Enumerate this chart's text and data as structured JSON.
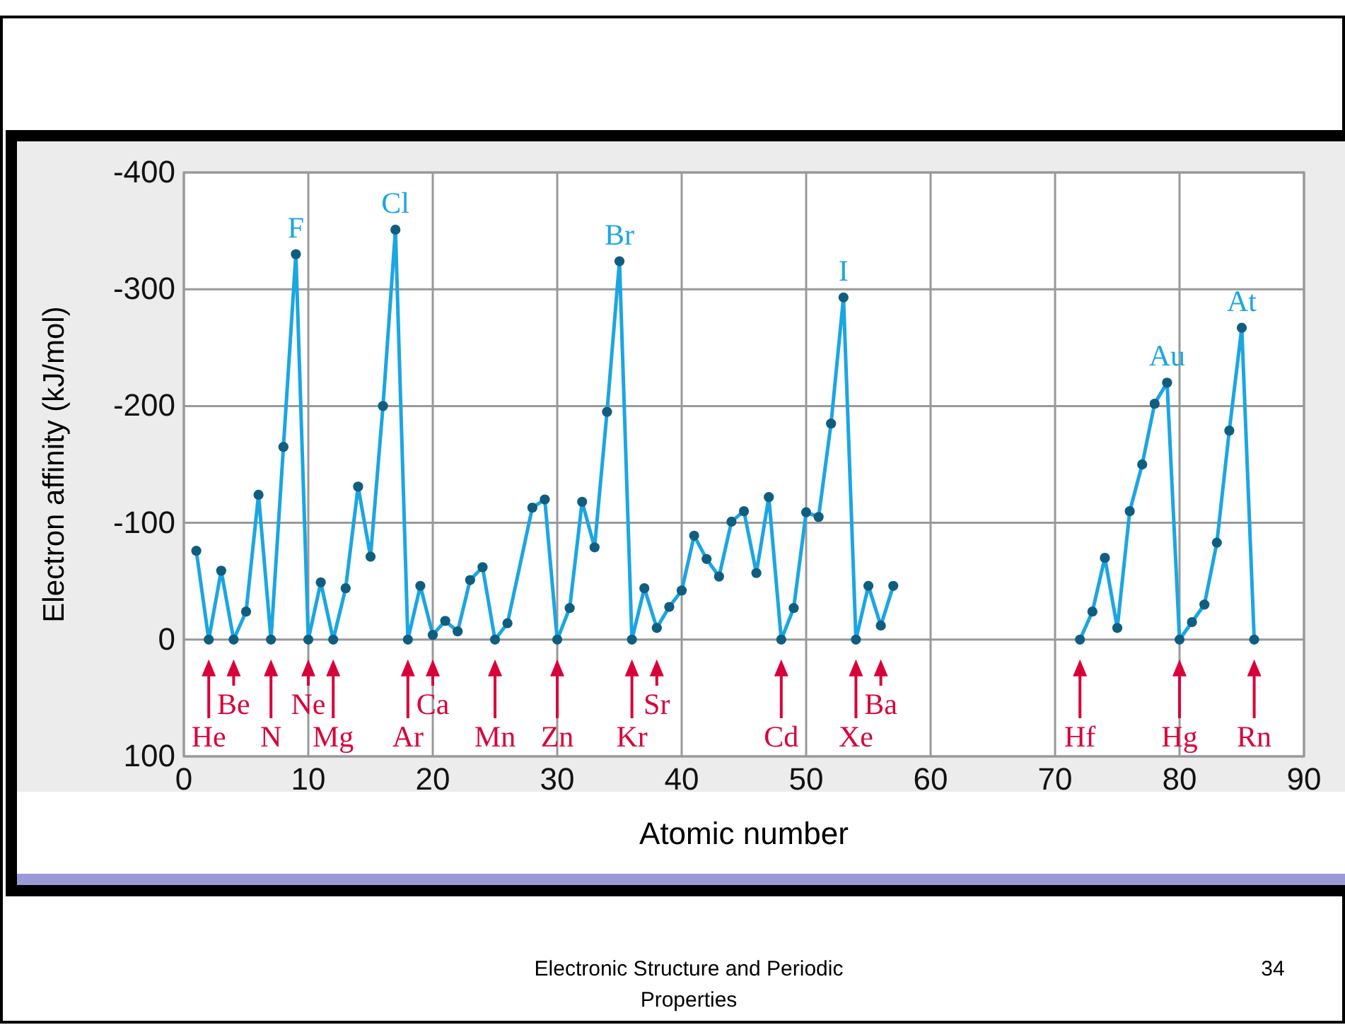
{
  "chart_data": {
    "type": "line",
    "xlabel": "Atomic number",
    "ylabel": "Electron affinity (kJ/mol)",
    "xlim": [
      0,
      90
    ],
    "xticks": [
      0,
      10,
      20,
      30,
      40,
      50,
      60,
      70,
      80,
      90
    ],
    "ylim": [
      100,
      -400
    ],
    "yticks": [
      -400,
      -300,
      -200,
      -100,
      0,
      100
    ],
    "grid": true,
    "marker": "circle",
    "line_style": "solid",
    "series": [
      {
        "color": "#1ba6e2",
        "x": [
          1,
          2,
          3,
          4,
          5,
          6,
          7,
          8,
          9,
          10,
          11,
          12,
          13,
          14,
          15,
          16,
          17,
          18,
          19,
          20,
          21,
          22,
          23,
          24,
          25,
          26,
          28,
          29,
          30,
          31,
          32,
          33,
          34,
          35,
          36,
          37,
          38,
          39,
          40,
          41,
          42,
          43,
          44,
          45,
          46,
          47,
          48,
          49,
          50,
          51,
          52,
          53,
          54,
          55,
          56,
          57,
          64,
          72,
          73,
          74,
          75,
          76,
          77,
          78,
          79,
          80,
          81,
          82,
          83,
          84,
          85,
          86
        ],
        "values": [
          -76,
          0,
          -59,
          0,
          -24,
          -124,
          0,
          -165,
          -330,
          0,
          -49,
          0,
          -44,
          -131,
          -71,
          -200,
          -351,
          0,
          -46,
          -4,
          -16,
          -7,
          -51,
          -62,
          0,
          -14,
          -113,
          -120,
          0,
          -27,
          -118,
          -79,
          -195,
          -324,
          0,
          -44,
          -10,
          -28,
          -42,
          -89,
          -69,
          -54,
          -101,
          -110,
          -57,
          -122,
          0,
          -27,
          -109,
          -105,
          -185,
          -293,
          0,
          -46,
          -12,
          -46,
          null,
          0,
          -24,
          -70,
          -10,
          -110,
          -150,
          -202,
          -220,
          0,
          -15,
          -30,
          -83,
          -179,
          -267,
          0
        ]
      }
    ],
    "annotations": [
      {
        "text": "F",
        "x": 9,
        "y": -330
      },
      {
        "text": "Cl",
        "x": 17,
        "y": -351
      },
      {
        "text": "Br",
        "x": 35,
        "y": -324
      },
      {
        "text": "I",
        "x": 53,
        "y": -293
      },
      {
        "text": "Au",
        "x": 79,
        "y": -220
      },
      {
        "text": "At",
        "x": 85,
        "y": -267
      },
      {
        "text": "He",
        "x": 2,
        "y": 0
      },
      {
        "text": "Be",
        "x": 4,
        "y": 0
      },
      {
        "text": "N",
        "x": 7,
        "y": 0
      },
      {
        "text": "Ne",
        "x": 10,
        "y": 0
      },
      {
        "text": "Mg",
        "x": 12,
        "y": 0
      },
      {
        "text": "Ar",
        "x": 18,
        "y": 0
      },
      {
        "text": "Ca",
        "x": 20,
        "y": -4
      },
      {
        "text": "Mn",
        "x": 25,
        "y": 0
      },
      {
        "text": "Zn",
        "x": 30,
        "y": 0
      },
      {
        "text": "Kr",
        "x": 36,
        "y": 0
      },
      {
        "text": "Sr",
        "x": 38,
        "y": -10
      },
      {
        "text": "Cd",
        "x": 48,
        "y": 0
      },
      {
        "text": "Xe",
        "x": 54,
        "y": 0
      },
      {
        "text": "Ba",
        "x": 56,
        "y": -12
      },
      {
        "text": "Hf",
        "x": 72,
        "y": 0
      },
      {
        "text": "Hg",
        "x": 80,
        "y": 0
      },
      {
        "text": "Rn",
        "x": 86,
        "y": 0
      },
      "Electronic Structure and Periodic Properties",
      "34"
    ]
  }
}
